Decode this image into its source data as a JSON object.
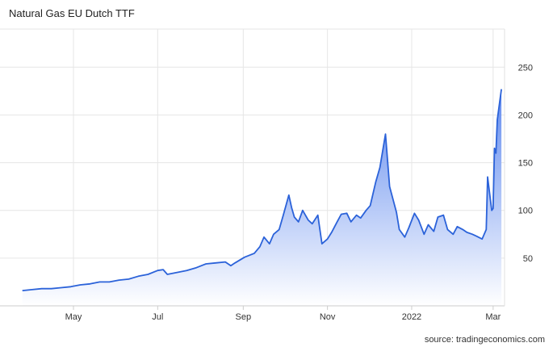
{
  "chart_data": {
    "type": "area",
    "title": "Natural Gas EU Dutch TTF",
    "source": "source: tradingeconomics.com",
    "x_tick_labels": [
      "May",
      "Jul",
      "Sep",
      "Nov",
      "2022",
      "Mar"
    ],
    "y_tick_labels": [
      "50",
      "100",
      "150",
      "200",
      "250"
    ],
    "ylim": [
      0,
      290
    ],
    "grid": true,
    "colors": {
      "line": "#2b62d9",
      "fill_top": "#5b86ee",
      "fill_bottom": "#ffffff",
      "grid": "#e6e6e6"
    },
    "series": [
      {
        "x": [
          "2021-03-25",
          "2021-04-01",
          "2021-04-08",
          "2021-04-15",
          "2021-04-22",
          "2021-04-29",
          "2021-05-06",
          "2021-05-13",
          "2021-05-20",
          "2021-05-27",
          "2021-06-03",
          "2021-06-10",
          "2021-06-17",
          "2021-06-24",
          "2021-07-01",
          "2021-07-05",
          "2021-07-08",
          "2021-07-15",
          "2021-07-22",
          "2021-07-29",
          "2021-08-05",
          "2021-08-12",
          "2021-08-19",
          "2021-08-23",
          "2021-08-26",
          "2021-09-02",
          "2021-09-09",
          "2021-09-13",
          "2021-09-16",
          "2021-09-20",
          "2021-09-23",
          "2021-09-27",
          "2021-09-30",
          "2021-10-04",
          "2021-10-06",
          "2021-10-08",
          "2021-10-11",
          "2021-10-14",
          "2021-10-18",
          "2021-10-21",
          "2021-10-25",
          "2021-10-28",
          "2021-11-01",
          "2021-11-04",
          "2021-11-08",
          "2021-11-11",
          "2021-11-15",
          "2021-11-18",
          "2021-11-22",
          "2021-11-25",
          "2021-11-29",
          "2021-12-02",
          "2021-12-06",
          "2021-12-09",
          "2021-12-13",
          "2021-12-16",
          "2021-12-21",
          "2021-12-23",
          "2021-12-27",
          "2021-12-30",
          "2022-01-03",
          "2022-01-06",
          "2022-01-10",
          "2022-01-13",
          "2022-01-17",
          "2022-01-20",
          "2022-01-24",
          "2022-01-27",
          "2022-01-31",
          "2022-02-03",
          "2022-02-07",
          "2022-02-10",
          "2022-02-14",
          "2022-02-17",
          "2022-02-21",
          "2022-02-24",
          "2022-02-25",
          "2022-02-28",
          "2022-03-01",
          "2022-03-02",
          "2022-03-03",
          "2022-03-04",
          "2022-03-07"
        ],
        "values": [
          16,
          17,
          18,
          18,
          19,
          20,
          22,
          23,
          25,
          25,
          27,
          28,
          31,
          33,
          37,
          38,
          33,
          35,
          37,
          40,
          44,
          45,
          46,
          42,
          45,
          51,
          55,
          62,
          72,
          65,
          75,
          80,
          95,
          116,
          103,
          93,
          88,
          100,
          90,
          86,
          95,
          65,
          70,
          77,
          88,
          96,
          97,
          88,
          95,
          92,
          100,
          105,
          130,
          145,
          180,
          125,
          98,
          80,
          72,
          82,
          97,
          90,
          75,
          85,
          78,
          93,
          95,
          80,
          75,
          83,
          80,
          77,
          75,
          73,
          70,
          80,
          135,
          100,
          102,
          165,
          160,
          195,
          227
        ]
      }
    ]
  }
}
